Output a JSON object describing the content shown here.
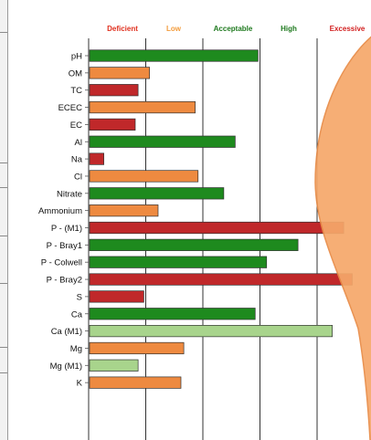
{
  "chart_data": {
    "type": "bar",
    "orientation": "horizontal",
    "title": "",
    "xlabel": "",
    "ylabel": "",
    "grid": true,
    "legend_position": "top",
    "levels": [
      {
        "label": "Deficient",
        "color": "#e0301e"
      },
      {
        "label": "Low",
        "color": "#f39c3c"
      },
      {
        "label": "Acceptable",
        "color": "#1f7a1f"
      },
      {
        "label": "High",
        "color": "#1f7a1f"
      },
      {
        "label": "Excessive",
        "color": "#d21f1f"
      }
    ],
    "xlim": [
      0,
      5
    ],
    "categories": [
      "pH",
      "OM",
      "TC",
      "ECEC",
      "EC",
      "Al",
      "Na",
      "Cl",
      "Nitrate",
      "Ammonium",
      "P - (M1)",
      "P - Bray1",
      "P - Colwell",
      "P - Bray2",
      "S",
      "Ca",
      "Ca (M1)",
      "Mg",
      "Mg (M1)",
      "K"
    ],
    "values": [
      2.95,
      1.05,
      0.85,
      1.85,
      0.8,
      2.55,
      0.25,
      1.9,
      2.35,
      1.2,
      4.45,
      3.65,
      3.1,
      4.6,
      0.95,
      2.9,
      4.25,
      1.65,
      0.85,
      1.6
    ],
    "bar_colors": [
      "#1e8a1e",
      "#ee8a40",
      "#c0282a",
      "#ee8a40",
      "#c0282a",
      "#1e8a1e",
      "#c0282a",
      "#ee8a40",
      "#1e8a1e",
      "#ee8a40",
      "#c0282a",
      "#1e8a1e",
      "#1e8a1e",
      "#c0282a",
      "#c0282a",
      "#1e8a1e",
      "#a8d48c",
      "#ee8a40",
      "#a8d48c",
      "#ee8a40"
    ]
  }
}
